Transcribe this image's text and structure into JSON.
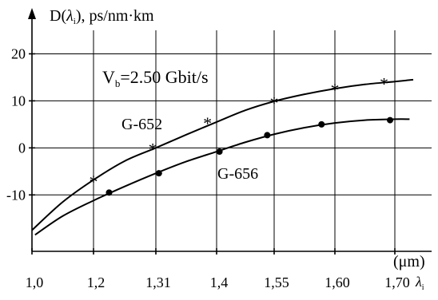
{
  "chart_data": {
    "type": "line",
    "ylabel_prefix": "D(",
    "ylabel_lambda": "λ",
    "ylabel_sub": "i",
    "ylabel_suffix": "), ps/nm·km",
    "xlabel_unit": "(μm)",
    "xlabel_lambda": "λ",
    "xlabel_sub": "i",
    "annotation_main": "V",
    "annotation_sub": "b",
    "annotation_rest": "=2.50 Gbit/s",
    "x_tick_labels": [
      "1,0",
      "1,2",
      "1,31",
      "1,4",
      "1,55",
      "1,60",
      "1,70"
    ],
    "y_tick_labels": [
      "20",
      "10",
      "0",
      "-10"
    ],
    "y_tick_values": [
      20,
      10,
      0,
      -10
    ],
    "ylim": [
      -22,
      25
    ],
    "grid": true,
    "series": [
      {
        "name": "G-652",
        "marker": "star",
        "curve": [
          [
            0,
            -17.5
          ],
          [
            0.5,
            -11.5
          ],
          [
            1,
            -6.8
          ],
          [
            1.5,
            -2.8
          ],
          [
            2,
            0
          ],
          [
            2.5,
            2.8
          ],
          [
            3,
            5.5
          ],
          [
            3.5,
            8.0
          ],
          [
            4,
            9.9
          ],
          [
            4.5,
            11.4
          ],
          [
            5,
            12.6
          ],
          [
            5.5,
            13.5
          ],
          [
            6,
            14.1
          ],
          [
            6.5,
            14.5
          ]
        ],
        "points": [
          [
            1,
            -6.9
          ],
          [
            1.95,
            0.0
          ],
          [
            2.85,
            5.5
          ],
          [
            4.0,
            9.8
          ],
          [
            5.0,
            12.6
          ],
          [
            5.82,
            13.9
          ]
        ]
      },
      {
        "name": "G-656",
        "marker": "dot",
        "curve": [
          [
            0.05,
            -18.5
          ],
          [
            0.5,
            -14.5
          ],
          [
            1,
            -11.2
          ],
          [
            1.5,
            -8.2
          ],
          [
            2,
            -5.4
          ],
          [
            2.5,
            -2.9
          ],
          [
            3,
            -0.8
          ],
          [
            3.5,
            1.2
          ],
          [
            4,
            2.9
          ],
          [
            4.5,
            4.3
          ],
          [
            5,
            5.3
          ],
          [
            5.5,
            5.9
          ],
          [
            6,
            6.1
          ],
          [
            6.4,
            6.1
          ]
        ],
        "points": [
          [
            1.25,
            -9.5
          ],
          [
            2.05,
            -5.4
          ],
          [
            3.05,
            -0.8
          ],
          [
            3.88,
            2.7
          ],
          [
            4.78,
            5.0
          ],
          [
            5.92,
            5.9
          ]
        ]
      }
    ]
  }
}
